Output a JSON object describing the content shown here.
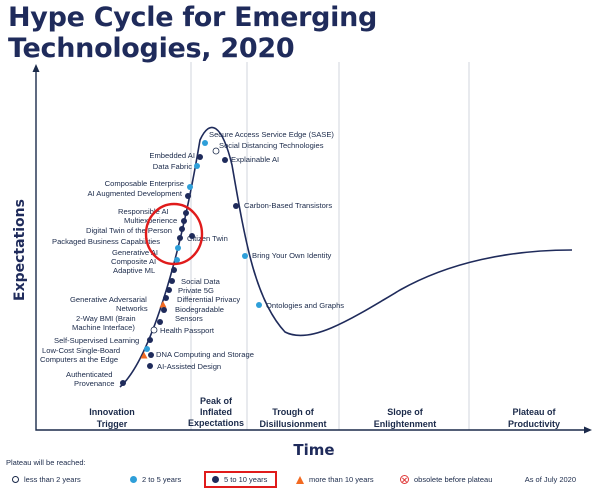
{
  "title_line1": "Hype Cycle for Emerging",
  "title_line2": "Technologies, 2020",
  "y_axis_label": "Expectations",
  "x_axis_label": "Time",
  "phases": [
    {
      "line1": "Innovation",
      "line2": "Trigger",
      "line3": ""
    },
    {
      "line1": "Peak of",
      "line2": "Inflated",
      "line3": "Expectations"
    },
    {
      "line1": "Trough of",
      "line2": "Disillusionment",
      "line3": ""
    },
    {
      "line1": "Slope of",
      "line2": "Enlightenment",
      "line3": ""
    },
    {
      "line1": "Plateau of",
      "line2": "Productivity",
      "line3": ""
    }
  ],
  "colors": {
    "dark": "#1f2b5b",
    "light": "#2e9fd9",
    "orange": "#f26a21",
    "highlight": "#e01b1b"
  },
  "technologies": [
    {
      "name": "Secure Access Service Edge (SASE)",
      "category": "2 to 5 years"
    },
    {
      "name": "Social Distancing Technologies",
      "category": "less than 2 years"
    },
    {
      "name": "Embedded AI",
      "category": "5 to 10 years"
    },
    {
      "name": "Data Fabric",
      "category": "2 to 5 years"
    },
    {
      "name": "Explainable AI",
      "category": "5 to 10 years"
    },
    {
      "name": "Composable Enterprise",
      "category": "2 to 5 years"
    },
    {
      "name": "AI Augmented Development",
      "category": "5 to 10 years"
    },
    {
      "name": "Carbon-Based Transistors",
      "category": "5 to 10 years"
    },
    {
      "name": "Responsible AI",
      "category": "5 to 10 years"
    },
    {
      "name": "Multiexperience",
      "category": "5 to 10 years"
    },
    {
      "name": "Digital Twin of the Person",
      "category": "5 to 10 years"
    },
    {
      "name": "Packaged Business Capabilities",
      "category": "5 to 10 years"
    },
    {
      "name": "Citizen Twin",
      "category": "5 to 10 years"
    },
    {
      "name": "Generative AI",
      "category": "2 to 5 years"
    },
    {
      "name": "Bring Your Own Identity",
      "category": "2 to 5 years"
    },
    {
      "name": "Composite AI",
      "category": "2 to 5 years"
    },
    {
      "name": "Adaptive ML",
      "category": "5 to 10 years"
    },
    {
      "name": "Social Data",
      "category": "5 to 10 years"
    },
    {
      "name": "Private 5G",
      "category": "5 to 10 years"
    },
    {
      "name": "Differential Privacy",
      "category": "5 to 10 years"
    },
    {
      "name": "Generative Adversarial Networks",
      "category": "more than 10 years"
    },
    {
      "name": "Biodegradable Sensors",
      "category": "5 to 10 years"
    },
    {
      "name": "Ontologies and Graphs",
      "category": "2 to 5 years"
    },
    {
      "name": "2-Way BMI (Brain Machine Interface)",
      "category": "5 to 10 years"
    },
    {
      "name": "Health Passport",
      "category": "less than 2 years"
    },
    {
      "name": "Self-Supervised Learning",
      "category": "5 to 10 years"
    },
    {
      "name": "Low-Cost Single-Board Computers at the Edge",
      "category": "2 to 5 years"
    },
    {
      "name": "DNA Computing and Storage",
      "category": "more than 10 years"
    },
    {
      "name": "AI-Assisted Design",
      "category": "5 to 10 years"
    },
    {
      "name": "Authenticated Provenance",
      "category": "5 to 10 years"
    }
  ],
  "legend": {
    "heading": "Plateau will be reached:",
    "less_than_2": "less than 2 years",
    "two_to_5": "2 to 5 years",
    "five_to_10": "5 to 10 years",
    "more_than_10": "more than 10 years",
    "obsolete": "obsolete before plateau",
    "as_of": "As of July 2020"
  }
}
